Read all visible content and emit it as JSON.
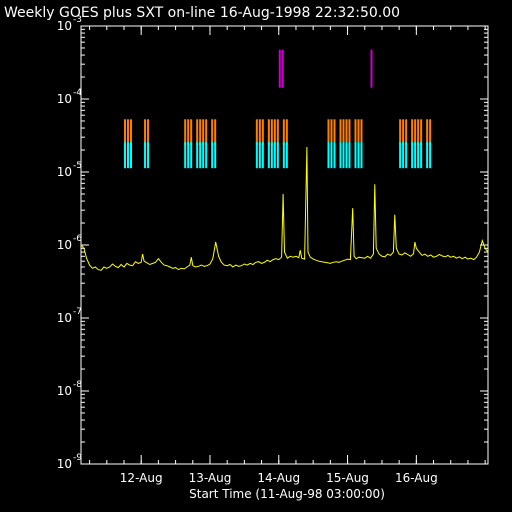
{
  "chart_data": {
    "type": "line",
    "title": "Weekly GOES plus SXT on-line 16-Aug-1998 22:32:50.00",
    "xlabel": "Start Time (11-Aug-98 03:00:00)",
    "ylabel": "",
    "log_y": true,
    "ylim": [
      1e-09,
      0.001
    ],
    "y_ticks": [
      {
        "base": "10",
        "exp": "-9",
        "value": 1e-09
      },
      {
        "base": "10",
        "exp": "-8",
        "value": 1e-08
      },
      {
        "base": "10",
        "exp": "-7",
        "value": 1e-07
      },
      {
        "base": "10",
        "exp": "-6",
        "value": 1e-06
      },
      {
        "base": "10",
        "exp": "-5",
        "value": 1e-05
      },
      {
        "base": "10",
        "exp": "-4",
        "value": 0.0001
      },
      {
        "base": "10",
        "exp": "-3",
        "value": 0.001
      }
    ],
    "xlim_hours": [
      0,
      142
    ],
    "x_ticks": [
      {
        "label": "12-Aug",
        "hours": 21
      },
      {
        "label": "13-Aug",
        "hours": 45
      },
      {
        "label": "14-Aug",
        "hours": 69
      },
      {
        "label": "15-Aug",
        "hours": 93
      },
      {
        "label": "16-Aug",
        "hours": 117
      }
    ],
    "series": [
      {
        "color": "#ffff00",
        "points": [
          [
            0,
            1e-06
          ],
          [
            1,
            9e-07
          ],
          [
            2,
            6.5e-07
          ],
          [
            3,
            5.3e-07
          ],
          [
            4,
            4.8e-07
          ],
          [
            5,
            5e-07
          ],
          [
            6,
            4.6e-07
          ],
          [
            7,
            4.5e-07
          ],
          [
            8,
            5e-07
          ],
          [
            9,
            4.8e-07
          ],
          [
            10,
            5e-07
          ],
          [
            11,
            5.5e-07
          ],
          [
            12,
            5.1e-07
          ],
          [
            13,
            4.9e-07
          ],
          [
            14,
            5.4e-07
          ],
          [
            15,
            5e-07
          ],
          [
            16,
            5.6e-07
          ],
          [
            17,
            5.3e-07
          ],
          [
            18,
            5.2e-07
          ],
          [
            19,
            5.9e-07
          ],
          [
            20,
            5.6e-07
          ],
          [
            21,
            5.8e-07
          ],
          [
            21.5,
            7.5e-07
          ],
          [
            22,
            6e-07
          ],
          [
            23,
            5.7e-07
          ],
          [
            24,
            5.4e-07
          ],
          [
            25,
            5.6e-07
          ],
          [
            26,
            5.8e-07
          ],
          [
            27,
            6.5e-07
          ],
          [
            28,
            5.8e-07
          ],
          [
            29,
            5.3e-07
          ],
          [
            30,
            5.2e-07
          ],
          [
            31,
            5e-07
          ],
          [
            32,
            4.8e-07
          ],
          [
            33,
            4.9e-07
          ],
          [
            34,
            4.6e-07
          ],
          [
            35,
            4.8e-07
          ],
          [
            36,
            4.7e-07
          ],
          [
            37,
            5e-07
          ],
          [
            38,
            5.3e-07
          ],
          [
            38.5,
            6.8e-07
          ],
          [
            39,
            5.2e-07
          ],
          [
            40,
            5e-07
          ],
          [
            41,
            5.1e-07
          ],
          [
            42,
            5.3e-07
          ],
          [
            43,
            5.1e-07
          ],
          [
            44,
            5.2e-07
          ],
          [
            45,
            5.5e-07
          ],
          [
            46,
            6.5e-07
          ],
          [
            47,
            1.1e-06
          ],
          [
            48,
            7e-07
          ],
          [
            49,
            5.8e-07
          ],
          [
            50,
            5.3e-07
          ],
          [
            51,
            5.2e-07
          ],
          [
            52,
            5.4e-07
          ],
          [
            53,
            5e-07
          ],
          [
            54,
            5.3e-07
          ],
          [
            55,
            5.1e-07
          ],
          [
            56,
            5.2e-07
          ],
          [
            57,
            5.5e-07
          ],
          [
            58,
            5.3e-07
          ],
          [
            59,
            5.6e-07
          ],
          [
            60,
            5.4e-07
          ],
          [
            61,
            5.8e-07
          ],
          [
            62,
            5.9e-07
          ],
          [
            63,
            5.6e-07
          ],
          [
            64,
            5.8e-07
          ],
          [
            65,
            6.2e-07
          ],
          [
            66,
            5.9e-07
          ],
          [
            67,
            6.3e-07
          ],
          [
            68,
            6.5e-07
          ],
          [
            69,
            6.3e-07
          ],
          [
            70,
            6.8e-07
          ],
          [
            70.5,
            5e-06
          ],
          [
            71,
            8e-07
          ],
          [
            72,
            6.6e-07
          ],
          [
            73,
            7e-07
          ],
          [
            74,
            6.8e-07
          ],
          [
            75,
            7e-07
          ],
          [
            76,
            6.7e-07
          ],
          [
            76.5,
            8.5e-07
          ],
          [
            77,
            6.6e-07
          ],
          [
            78,
            6.4e-07
          ],
          [
            78.8,
            2.2e-05
          ],
          [
            79.2,
            8e-07
          ],
          [
            80,
            6.8e-07
          ],
          [
            81,
            6.4e-07
          ],
          [
            82,
            6.2e-07
          ],
          [
            83,
            6e-07
          ],
          [
            84,
            5.9e-07
          ],
          [
            85,
            5.8e-07
          ],
          [
            86,
            5.7e-07
          ],
          [
            87,
            5.6e-07
          ],
          [
            88,
            5.8e-07
          ],
          [
            89,
            5.9e-07
          ],
          [
            90,
            5.8e-07
          ],
          [
            91,
            6e-07
          ],
          [
            92,
            6.2e-07
          ],
          [
            93,
            6.4e-07
          ],
          [
            94,
            6.3e-07
          ],
          [
            94.8,
            3.2e-06
          ],
          [
            95.3,
            7e-07
          ],
          [
            96,
            6.5e-07
          ],
          [
            97,
            6.8e-07
          ],
          [
            98,
            6.7e-07
          ],
          [
            99,
            6.6e-07
          ],
          [
            100,
            7e-07
          ],
          [
            101,
            6.6e-07
          ],
          [
            102,
            7.5e-07
          ],
          [
            102.5,
            6.8e-06
          ],
          [
            103,
            9e-07
          ],
          [
            104,
            7.5e-07
          ],
          [
            105,
            7e-07
          ],
          [
            106,
            6.9e-07
          ],
          [
            107,
            7.5e-07
          ],
          [
            108,
            7.2e-07
          ],
          [
            109,
            8e-07
          ],
          [
            109.5,
            2.6e-06
          ],
          [
            110,
            9e-07
          ],
          [
            111,
            7.5e-07
          ],
          [
            112,
            7.3e-07
          ],
          [
            113,
            7.8e-07
          ],
          [
            114,
            7.4e-07
          ],
          [
            115,
            7e-07
          ],
          [
            116,
            7.6e-07
          ],
          [
            116.5,
            1.1e-06
          ],
          [
            117,
            9e-07
          ],
          [
            118,
            8e-07
          ],
          [
            119,
            7.2e-07
          ],
          [
            120,
            7.5e-07
          ],
          [
            121,
            7e-07
          ],
          [
            122,
            7.3e-07
          ],
          [
            123,
            6.8e-07
          ],
          [
            124,
            7e-07
          ],
          [
            125,
            7.4e-07
          ],
          [
            126,
            7.1e-07
          ],
          [
            127,
            6.9e-07
          ],
          [
            128,
            7.2e-07
          ],
          [
            129,
            6.8e-07
          ],
          [
            130,
            7e-07
          ],
          [
            131,
            6.6e-07
          ],
          [
            132,
            6.9e-07
          ],
          [
            133,
            6.5e-07
          ],
          [
            134,
            6.8e-07
          ],
          [
            135,
            6.4e-07
          ],
          [
            136,
            6.6e-07
          ],
          [
            137,
            6.3e-07
          ],
          [
            138,
            6.8e-07
          ],
          [
            139,
            8e-07
          ],
          [
            140,
            1.15e-06
          ],
          [
            141,
            9e-07
          ],
          [
            142,
            8e-07
          ]
        ]
      }
    ],
    "observation_bars": [
      {
        "color": "#ff8000",
        "level": 3.5e-05,
        "intervals": [
          [
            15.0,
            17.7
          ],
          [
            22.0,
            23.6
          ],
          [
            36.0,
            46.8
          ],
          [
            61.0,
            72.3
          ],
          [
            86.0,
            97.8
          ],
          [
            111.0,
            122.2
          ]
        ]
      },
      {
        "color": "#00ffff",
        "level": 1.7e-05,
        "intervals": [
          [
            15.0,
            17.7
          ],
          [
            22.0,
            23.6
          ],
          [
            36.0,
            46.8
          ],
          [
            61.0,
            72.3
          ],
          [
            86.0,
            97.8
          ],
          [
            111.0,
            122.2
          ]
        ]
      },
      {
        "color": "#cc00cc",
        "level": 0.00026,
        "intervals": [
          [
            69.0,
            71.0
          ],
          [
            101.0,
            101.8
          ]
        ]
      }
    ]
  }
}
